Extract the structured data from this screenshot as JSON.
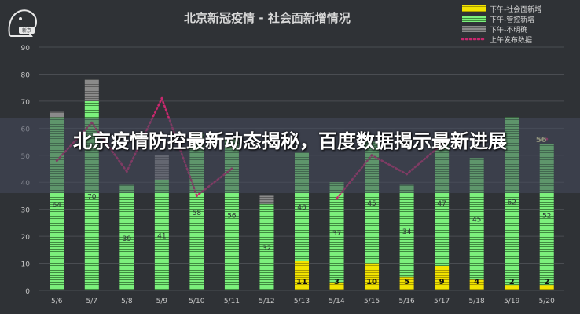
{
  "overlay": {
    "headline": "北京疫情防控最新动态揭秘，百度数据揭示最新进展"
  },
  "logo": {
    "text": "新京"
  },
  "chart_data": {
    "type": "bar",
    "title": "北京新冠疫情 - 社会面新增情况",
    "categories": [
      "5/6",
      "5/7",
      "5/8",
      "5/9",
      "5/10",
      "5/11",
      "5/12",
      "5/13",
      "5/14",
      "5/15",
      "5/16",
      "5/17",
      "5/18",
      "5/19",
      "5/20"
    ],
    "ylim": [
      0,
      90
    ],
    "yticks": [
      0,
      10,
      20,
      30,
      40,
      50,
      60,
      70,
      80,
      90
    ],
    "stacked": true,
    "series": [
      {
        "name": "下午-社会面新增",
        "color": "#f2e300",
        "values": [
          0,
          0,
          0,
          0,
          0,
          0,
          0,
          11,
          3,
          10,
          5,
          9,
          4,
          2,
          2
        ]
      },
      {
        "name": "下午-管控新增",
        "color": "#7cf07c",
        "values": [
          64,
          70,
          39,
          41,
          58,
          56,
          32,
          40,
          37,
          45,
          34,
          47,
          45,
          62,
          52
        ]
      },
      {
        "name": "下午-不明确",
        "color": "#8a8a8a",
        "values": [
          2,
          8,
          0,
          9,
          0,
          0,
          3,
          0,
          0,
          0,
          0,
          0,
          0,
          0,
          0
        ]
      },
      {
        "name": "上午发布数据",
        "color": "#c8286e",
        "type": "line",
        "values": [
          48,
          62,
          44,
          71,
          35,
          45,
          0,
          0,
          34,
          50,
          43,
          54,
          0,
          0,
          56
        ]
      }
    ],
    "bar_labels_managed": [
      "64",
      "70",
      "39",
      "41",
      "58",
      "56",
      "32",
      "40",
      "37",
      "45",
      "34",
      "47",
      "45",
      "62",
      "52"
    ],
    "bar_labels_social": [
      "",
      "",
      "",
      "",
      "",
      "",
      "",
      "11",
      "3",
      "10",
      "5",
      "9",
      "4",
      "2",
      "2"
    ],
    "annotation": "56",
    "grid": true,
    "legend": "top-right"
  },
  "colors": {
    "background": "#2f3236",
    "grid": "#4a4d52",
    "axis_text": "#c8c8c8"
  }
}
